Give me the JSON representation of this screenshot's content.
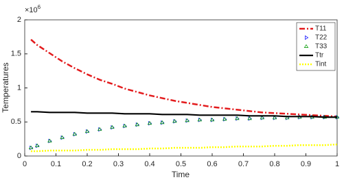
{
  "chart_data": {
    "type": "line",
    "xlabel": "Time",
    "ylabel": "Temperatures",
    "y_multiplier": {
      "base": "×10",
      "exponent": "6"
    },
    "x": [
      0.02,
      0.04,
      0.08,
      0.12,
      0.16,
      0.2,
      0.24,
      0.28,
      0.32,
      0.36,
      0.4,
      0.44,
      0.48,
      0.52,
      0.56,
      0.6,
      0.64,
      0.68,
      0.72,
      0.76,
      0.8,
      0.84,
      0.88,
      0.92,
      0.96,
      1.0
    ],
    "series": [
      {
        "name": "T11",
        "color": "#e31a1c",
        "line": "dashdot",
        "values": [
          1.71,
          1.63,
          1.51,
          1.39,
          1.29,
          1.2,
          1.12,
          1.06,
          0.99,
          0.94,
          0.89,
          0.85,
          0.81,
          0.78,
          0.75,
          0.72,
          0.7,
          0.68,
          0.66,
          0.64,
          0.63,
          0.62,
          0.61,
          0.6,
          0.59,
          0.58
        ]
      },
      {
        "name": "T22",
        "color": "#2020ff",
        "marker": "triangle-right",
        "values": [
          0.12,
          0.15,
          0.22,
          0.27,
          0.32,
          0.36,
          0.39,
          0.42,
          0.44,
          0.46,
          0.48,
          0.49,
          0.51,
          0.52,
          0.53,
          0.53,
          0.54,
          0.55,
          0.55,
          0.56,
          0.56,
          0.56,
          0.57,
          0.57,
          0.57,
          0.57
        ]
      },
      {
        "name": "T33",
        "color": "#10a010",
        "marker": "triangle-up",
        "values": [
          0.12,
          0.15,
          0.22,
          0.27,
          0.32,
          0.36,
          0.39,
          0.42,
          0.44,
          0.46,
          0.48,
          0.49,
          0.51,
          0.52,
          0.53,
          0.53,
          0.54,
          0.55,
          0.55,
          0.56,
          0.56,
          0.56,
          0.57,
          0.57,
          0.57,
          0.57
        ]
      },
      {
        "name": "Ttr",
        "color": "#000000",
        "line": "solid",
        "values": [
          0.65,
          0.65,
          0.64,
          0.64,
          0.64,
          0.63,
          0.63,
          0.63,
          0.62,
          0.62,
          0.62,
          0.61,
          0.61,
          0.61,
          0.6,
          0.6,
          0.6,
          0.6,
          0.59,
          0.59,
          0.59,
          0.58,
          0.58,
          0.58,
          0.57,
          0.57
        ]
      },
      {
        "name": "Tint",
        "color": "#ffff00",
        "line": "dotted",
        "values": [
          0.07,
          0.07,
          0.08,
          0.08,
          0.08,
          0.09,
          0.09,
          0.1,
          0.1,
          0.1,
          0.11,
          0.11,
          0.12,
          0.12,
          0.12,
          0.13,
          0.13,
          0.14,
          0.14,
          0.14,
          0.15,
          0.15,
          0.16,
          0.16,
          0.16,
          0.17
        ]
      }
    ],
    "xlim": [
      0,
      1
    ],
    "ylim": [
      0,
      2
    ],
    "xticks": [
      0,
      0.1,
      0.2,
      0.3,
      0.4,
      0.5,
      0.6,
      0.7,
      0.8,
      0.9,
      1
    ],
    "yticks": [
      0,
      0.5,
      1,
      1.5,
      2
    ],
    "grid": false,
    "legend": "northeast"
  }
}
